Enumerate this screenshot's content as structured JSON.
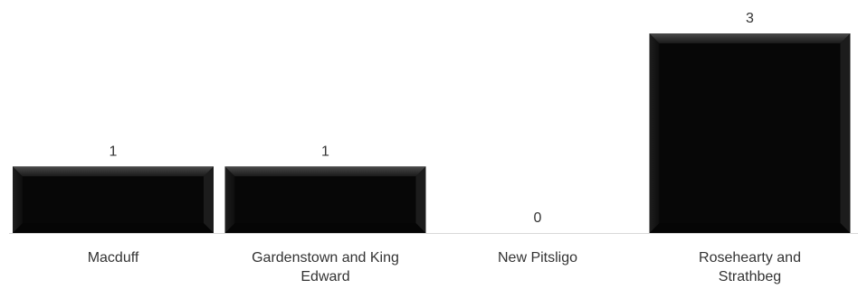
{
  "chart_data": {
    "type": "bar",
    "categories": [
      "Macduff",
      "Gardenstown and King Edward",
      "New Pitsligo",
      "Rosehearty and Strathbeg"
    ],
    "category_lines": [
      [
        "Macduff"
      ],
      [
        "Gardenstown and King",
        "Edward"
      ],
      [
        "New Pitsligo"
      ],
      [
        "Rosehearty and",
        "Strathbeg"
      ]
    ],
    "values": [
      1,
      1,
      0,
      3
    ],
    "value_labels": [
      "1",
      "1",
      "0",
      "3"
    ],
    "title": "",
    "xlabel": "",
    "ylabel": "",
    "ylim": [
      0,
      3
    ],
    "grid": false,
    "legend": "none",
    "colors": {
      "bar": "#050505",
      "bevel": "#3a3a3a",
      "axis": "#d9d9d9",
      "text": "#333333"
    }
  }
}
